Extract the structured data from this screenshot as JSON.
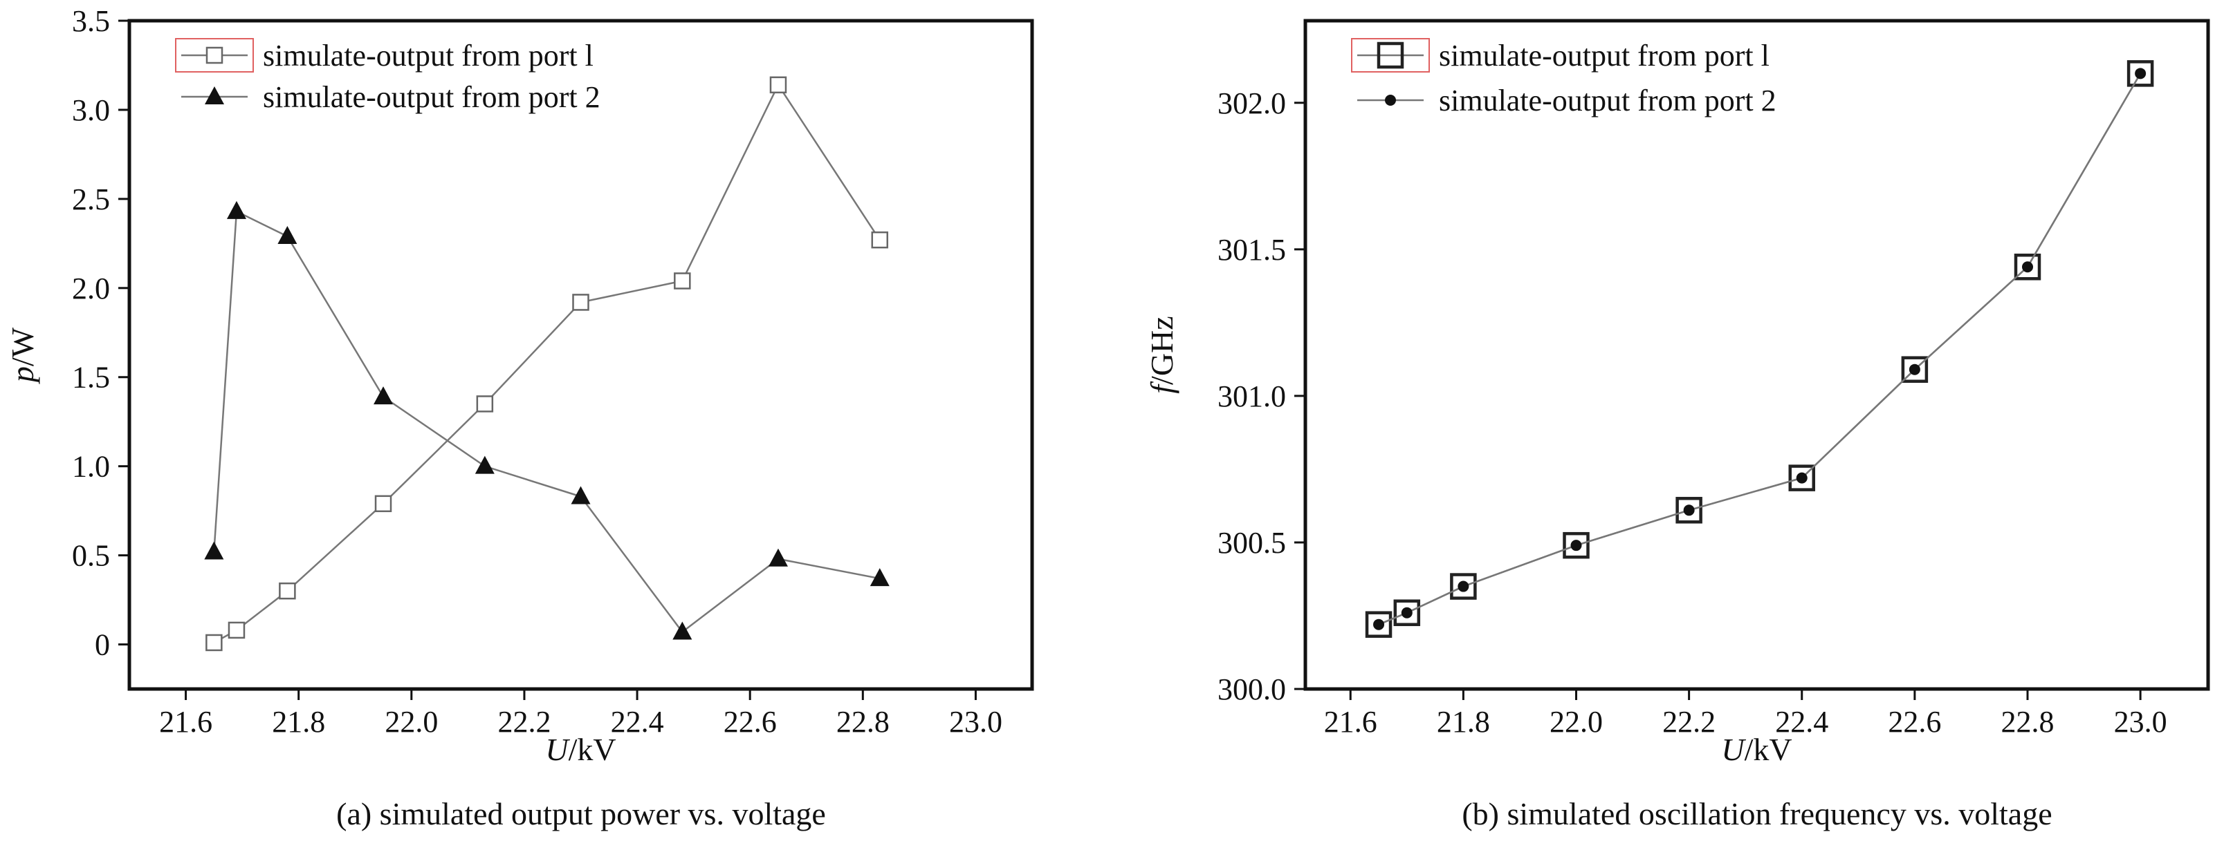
{
  "chart_data": [
    {
      "type": "line",
      "caption": "(a) simulated output power vs. voltage",
      "xlabel": {
        "italic": "U",
        "rest": "/kV"
      },
      "ylabel": {
        "italic": "p",
        "rest": "/W"
      },
      "xlim": [
        21.5,
        23.1
      ],
      "ylim": [
        -0.25,
        3.5
      ],
      "xticks": [
        21.6,
        21.8,
        22.0,
        22.2,
        22.4,
        22.6,
        22.8,
        23.0
      ],
      "xtick_labels": [
        "21.6",
        "21.8",
        "22.0",
        "22.2",
        "22.4",
        "22.6",
        "22.8",
        "23.0"
      ],
      "yticks": [
        0,
        0.5,
        1.0,
        1.5,
        2.0,
        2.5,
        3.0,
        3.5
      ],
      "ytick_labels": [
        "0",
        "0.5",
        "1.0",
        "1.5",
        "2.0",
        "2.5",
        "3.0",
        "3.5"
      ],
      "grid": false,
      "legend_position": "top-left",
      "series": [
        {
          "name": "simulate-output from port l",
          "marker": "open-square",
          "color": "#666666",
          "x": [
            21.65,
            21.69,
            21.78,
            21.95,
            22.13,
            22.3,
            22.48,
            22.65,
            22.83
          ],
          "y": [
            0.01,
            0.08,
            0.3,
            0.79,
            1.35,
            1.92,
            2.04,
            3.14,
            2.27
          ]
        },
        {
          "name": "simulate-output from port 2",
          "marker": "filled-triangle",
          "color": "#111111",
          "x": [
            21.65,
            21.69,
            21.78,
            21.95,
            22.13,
            22.3,
            22.48,
            22.65,
            22.83
          ],
          "y": [
            0.52,
            2.43,
            2.29,
            1.39,
            1.0,
            0.83,
            0.07,
            0.48,
            0.37
          ]
        }
      ]
    },
    {
      "type": "line",
      "caption": "(b) simulated oscillation frequency vs. voltage",
      "xlabel": {
        "italic": "U",
        "rest": "/kV"
      },
      "ylabel": {
        "italic": "f",
        "rest": "/GHz"
      },
      "xlim": [
        21.52,
        23.12
      ],
      "ylim": [
        300.0,
        302.28
      ],
      "xticks": [
        21.6,
        21.8,
        22.0,
        22.2,
        22.4,
        22.6,
        22.8,
        23.0
      ],
      "xtick_labels": [
        "21.6",
        "21.8",
        "22.0",
        "22.2",
        "22.4",
        "22.6",
        "22.8",
        "23.0"
      ],
      "yticks": [
        300.0,
        300.5,
        301.0,
        301.5,
        302.0
      ],
      "ytick_labels": [
        "300.0",
        "300.5",
        "301.0",
        "301.5",
        "302.0"
      ],
      "grid": false,
      "legend_position": "top-left",
      "series": [
        {
          "name": "simulate-output from port l",
          "marker": "open-square-large",
          "color": "#222222",
          "x": [
            21.65,
            21.7,
            21.8,
            22.0,
            22.2,
            22.4,
            22.6,
            22.8,
            23.0
          ],
          "y": [
            300.22,
            300.26,
            300.35,
            300.49,
            300.61,
            300.72,
            301.09,
            301.44,
            302.1
          ]
        },
        {
          "name": "simulate-output from port 2",
          "marker": "filled-circle",
          "color": "#111111",
          "x": [
            21.65,
            21.7,
            21.8,
            22.0,
            22.2,
            22.4,
            22.6,
            22.8,
            23.0
          ],
          "y": [
            300.22,
            300.26,
            300.35,
            300.49,
            300.61,
            300.72,
            301.09,
            301.44,
            302.1
          ]
        }
      ]
    }
  ]
}
